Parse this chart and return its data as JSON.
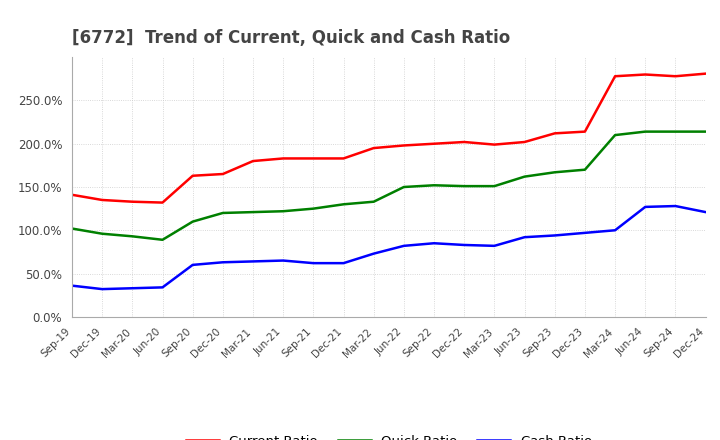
{
  "title": "[6772]  Trend of Current, Quick and Cash Ratio",
  "x_labels": [
    "Sep-19",
    "Dec-19",
    "Mar-20",
    "Jun-20",
    "Sep-20",
    "Dec-20",
    "Mar-21",
    "Jun-21",
    "Sep-21",
    "Dec-21",
    "Mar-22",
    "Jun-22",
    "Sep-22",
    "Dec-22",
    "Mar-23",
    "Jun-23",
    "Sep-23",
    "Dec-23",
    "Mar-24",
    "Jun-24",
    "Sep-24",
    "Dec-24"
  ],
  "current_ratio": [
    141,
    135,
    133,
    132,
    163,
    165,
    180,
    183,
    183,
    183,
    195,
    198,
    200,
    202,
    199,
    202,
    212,
    214,
    278,
    280,
    278,
    281
  ],
  "quick_ratio": [
    102,
    96,
    93,
    89,
    110,
    120,
    121,
    122,
    125,
    130,
    133,
    150,
    152,
    151,
    151,
    162,
    167,
    170,
    210,
    214,
    214,
    214
  ],
  "cash_ratio": [
    36,
    32,
    33,
    34,
    60,
    63,
    64,
    65,
    62,
    62,
    73,
    82,
    85,
    83,
    82,
    92,
    94,
    97,
    100,
    127,
    128,
    121
  ],
  "ylim": [
    0,
    300
  ],
  "yticks": [
    0,
    50,
    100,
    150,
    200,
    250
  ],
  "current_color": "#ff0000",
  "quick_color": "#008000",
  "cash_color": "#0000ff",
  "background_color": "#ffffff",
  "grid_color": "#cccccc"
}
